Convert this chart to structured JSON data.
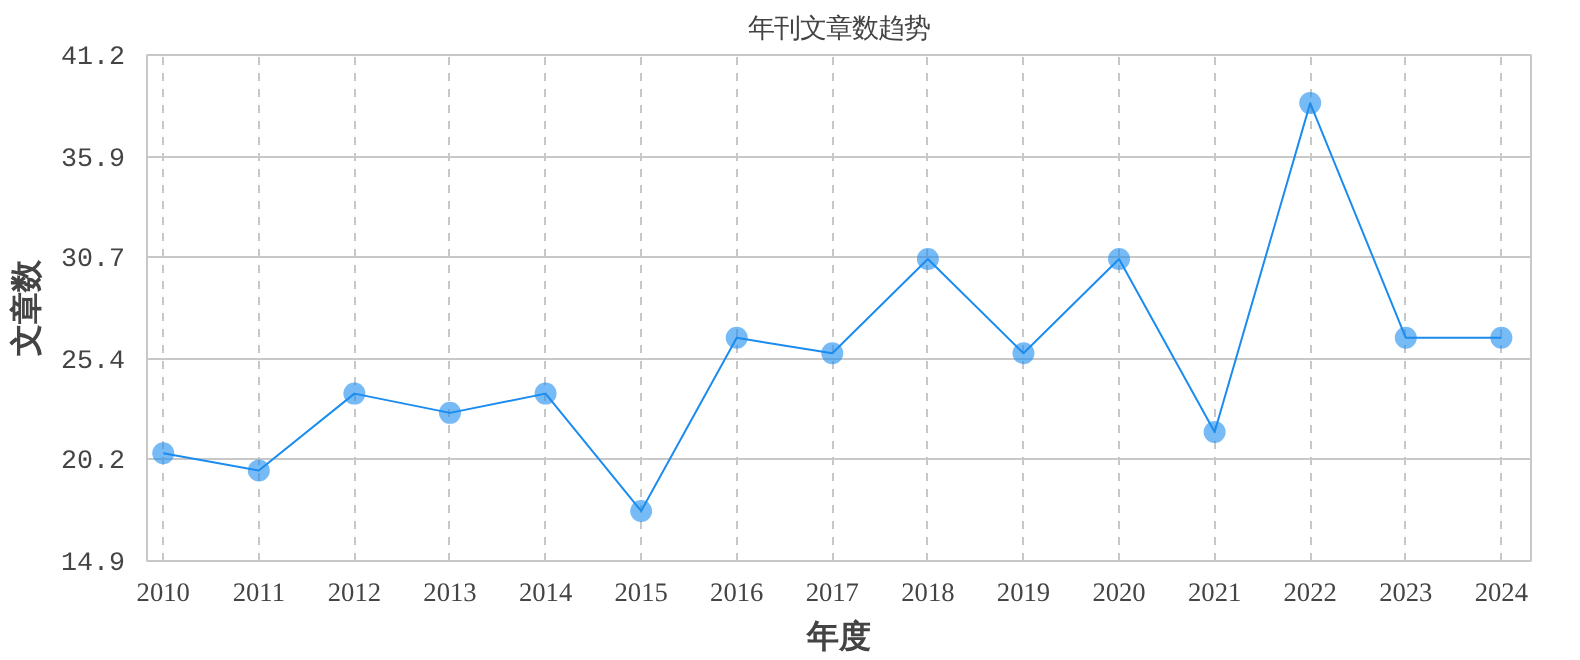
{
  "chart_data": {
    "type": "line",
    "title": "年刊文章数趋势",
    "xlabel": "年度",
    "ylabel": "文章数",
    "categories": [
      "2010",
      "2011",
      "2012",
      "2013",
      "2014",
      "2015",
      "2016",
      "2017",
      "2018",
      "2019",
      "2020",
      "2021",
      "2022",
      "2023",
      "2024"
    ],
    "series": [
      {
        "color": "#1a8cf0",
        "values": [
          20.5,
          19.6,
          23.6,
          22.6,
          23.6,
          17.5,
          26.5,
          25.7,
          30.6,
          25.7,
          30.6,
          21.6,
          38.7,
          26.5,
          26.5
        ]
      }
    ],
    "ylim": [
      14.9,
      41.2
    ],
    "yticks": [
      14.9,
      20.2,
      25.4,
      30.7,
      35.9,
      41.2
    ],
    "grid": true,
    "marker": "circle",
    "line_style": "solid"
  }
}
